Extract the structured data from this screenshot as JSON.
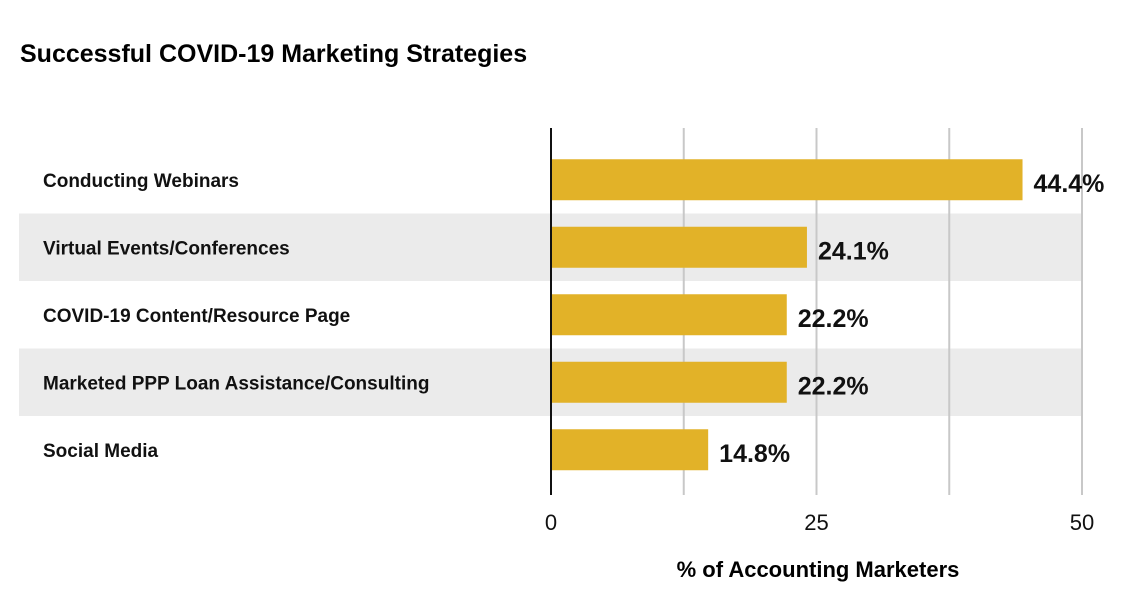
{
  "chart_data": {
    "type": "bar",
    "orientation": "horizontal",
    "title": "Successful COVID-19 Marketing Strategies",
    "xlabel": "% of Accounting Marketers",
    "ylabel": "",
    "categories": [
      "Conducting Webinars",
      "Virtual Events/Conferences",
      "COVID-19 Content/Resource Page",
      "Marketed PPP Loan Assistance/Consulting",
      "Social Media"
    ],
    "values": [
      44.4,
      24.1,
      22.2,
      22.2,
      14.8
    ],
    "value_labels": [
      "44.4%",
      "24.1%",
      "22.2%",
      "22.2%",
      "14.8%"
    ],
    "xlim": [
      0,
      50
    ],
    "ticks": [
      0,
      25,
      50
    ],
    "tick_labels": [
      "0",
      "25",
      "50"
    ],
    "gridlines": [
      12.5,
      25,
      37.5,
      50
    ],
    "grid": true,
    "alternating_row_shading": true,
    "colors": {
      "bar": "#E2B228",
      "row_shade": "#EBEBEB",
      "grid": "#C8C8C8",
      "axis": "#111111",
      "text": "#111111"
    }
  }
}
